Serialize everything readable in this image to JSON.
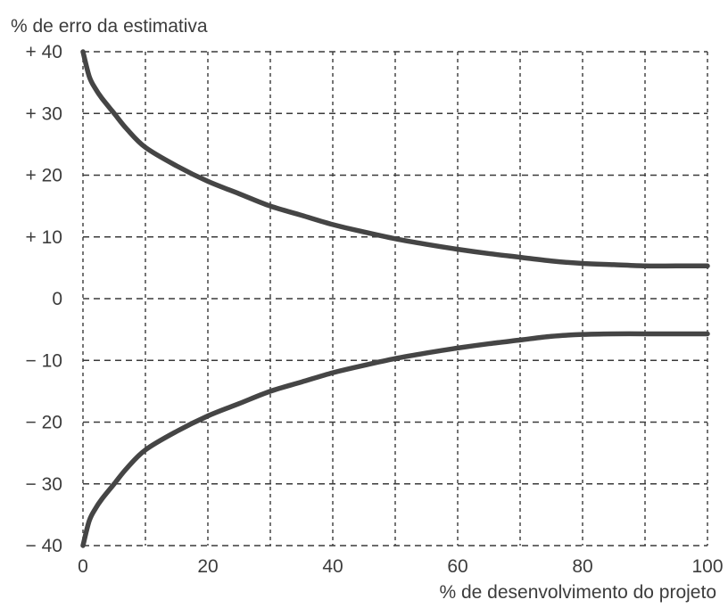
{
  "chart_data": {
    "type": "line",
    "title": "",
    "ylabel": "% de erro da estimativa",
    "xlabel": "% de desenvolvimento do projeto",
    "xlim": [
      0,
      100
    ],
    "ylim": [
      -40,
      40
    ],
    "x_ticks": [
      0,
      20,
      40,
      60,
      80,
      100
    ],
    "x_tick_labels": [
      "0",
      "20",
      "40",
      "60",
      "80",
      "100"
    ],
    "y_ticks": [
      40,
      30,
      20,
      10,
      0,
      -10,
      -20,
      -30,
      -40
    ],
    "y_tick_labels": [
      "+ 40",
      "+ 30",
      "+ 20",
      "+ 10",
      "0",
      "− 10",
      "− 20",
      "− 30",
      "− 40"
    ],
    "x_gridlines": [
      10,
      20,
      30,
      40,
      50,
      60,
      70,
      80,
      90
    ],
    "grid": true,
    "grid_style": "dashed",
    "line_color": "#454545",
    "series": [
      {
        "x": [
          0,
          1,
          2,
          3,
          5,
          7,
          10,
          15,
          20,
          25,
          30,
          35,
          40,
          45,
          50,
          55,
          60,
          65,
          70,
          75,
          80,
          85,
          90,
          95,
          100
        ],
        "y": [
          40,
          36,
          34,
          32.5,
          30,
          27.5,
          24.5,
          21.5,
          19,
          17,
          15,
          13.5,
          12,
          10.8,
          9.7,
          8.8,
          8,
          7.3,
          6.7,
          6.1,
          5.7,
          5.5,
          5.3,
          5.3,
          5.3
        ]
      },
      {
        "x": [
          0,
          1,
          2,
          3,
          5,
          7,
          10,
          15,
          20,
          25,
          30,
          35,
          40,
          45,
          50,
          55,
          60,
          65,
          70,
          75,
          80,
          85,
          90,
          95,
          100
        ],
        "y": [
          -40,
          -36,
          -34,
          -32.5,
          -30,
          -27.5,
          -24.5,
          -21.5,
          -19,
          -17,
          -15,
          -13.5,
          -12,
          -10.8,
          -9.7,
          -8.8,
          -8,
          -7.3,
          -6.7,
          -6.1,
          -5.8,
          -5.7,
          -5.7,
          -5.7,
          -5.7
        ]
      }
    ]
  }
}
